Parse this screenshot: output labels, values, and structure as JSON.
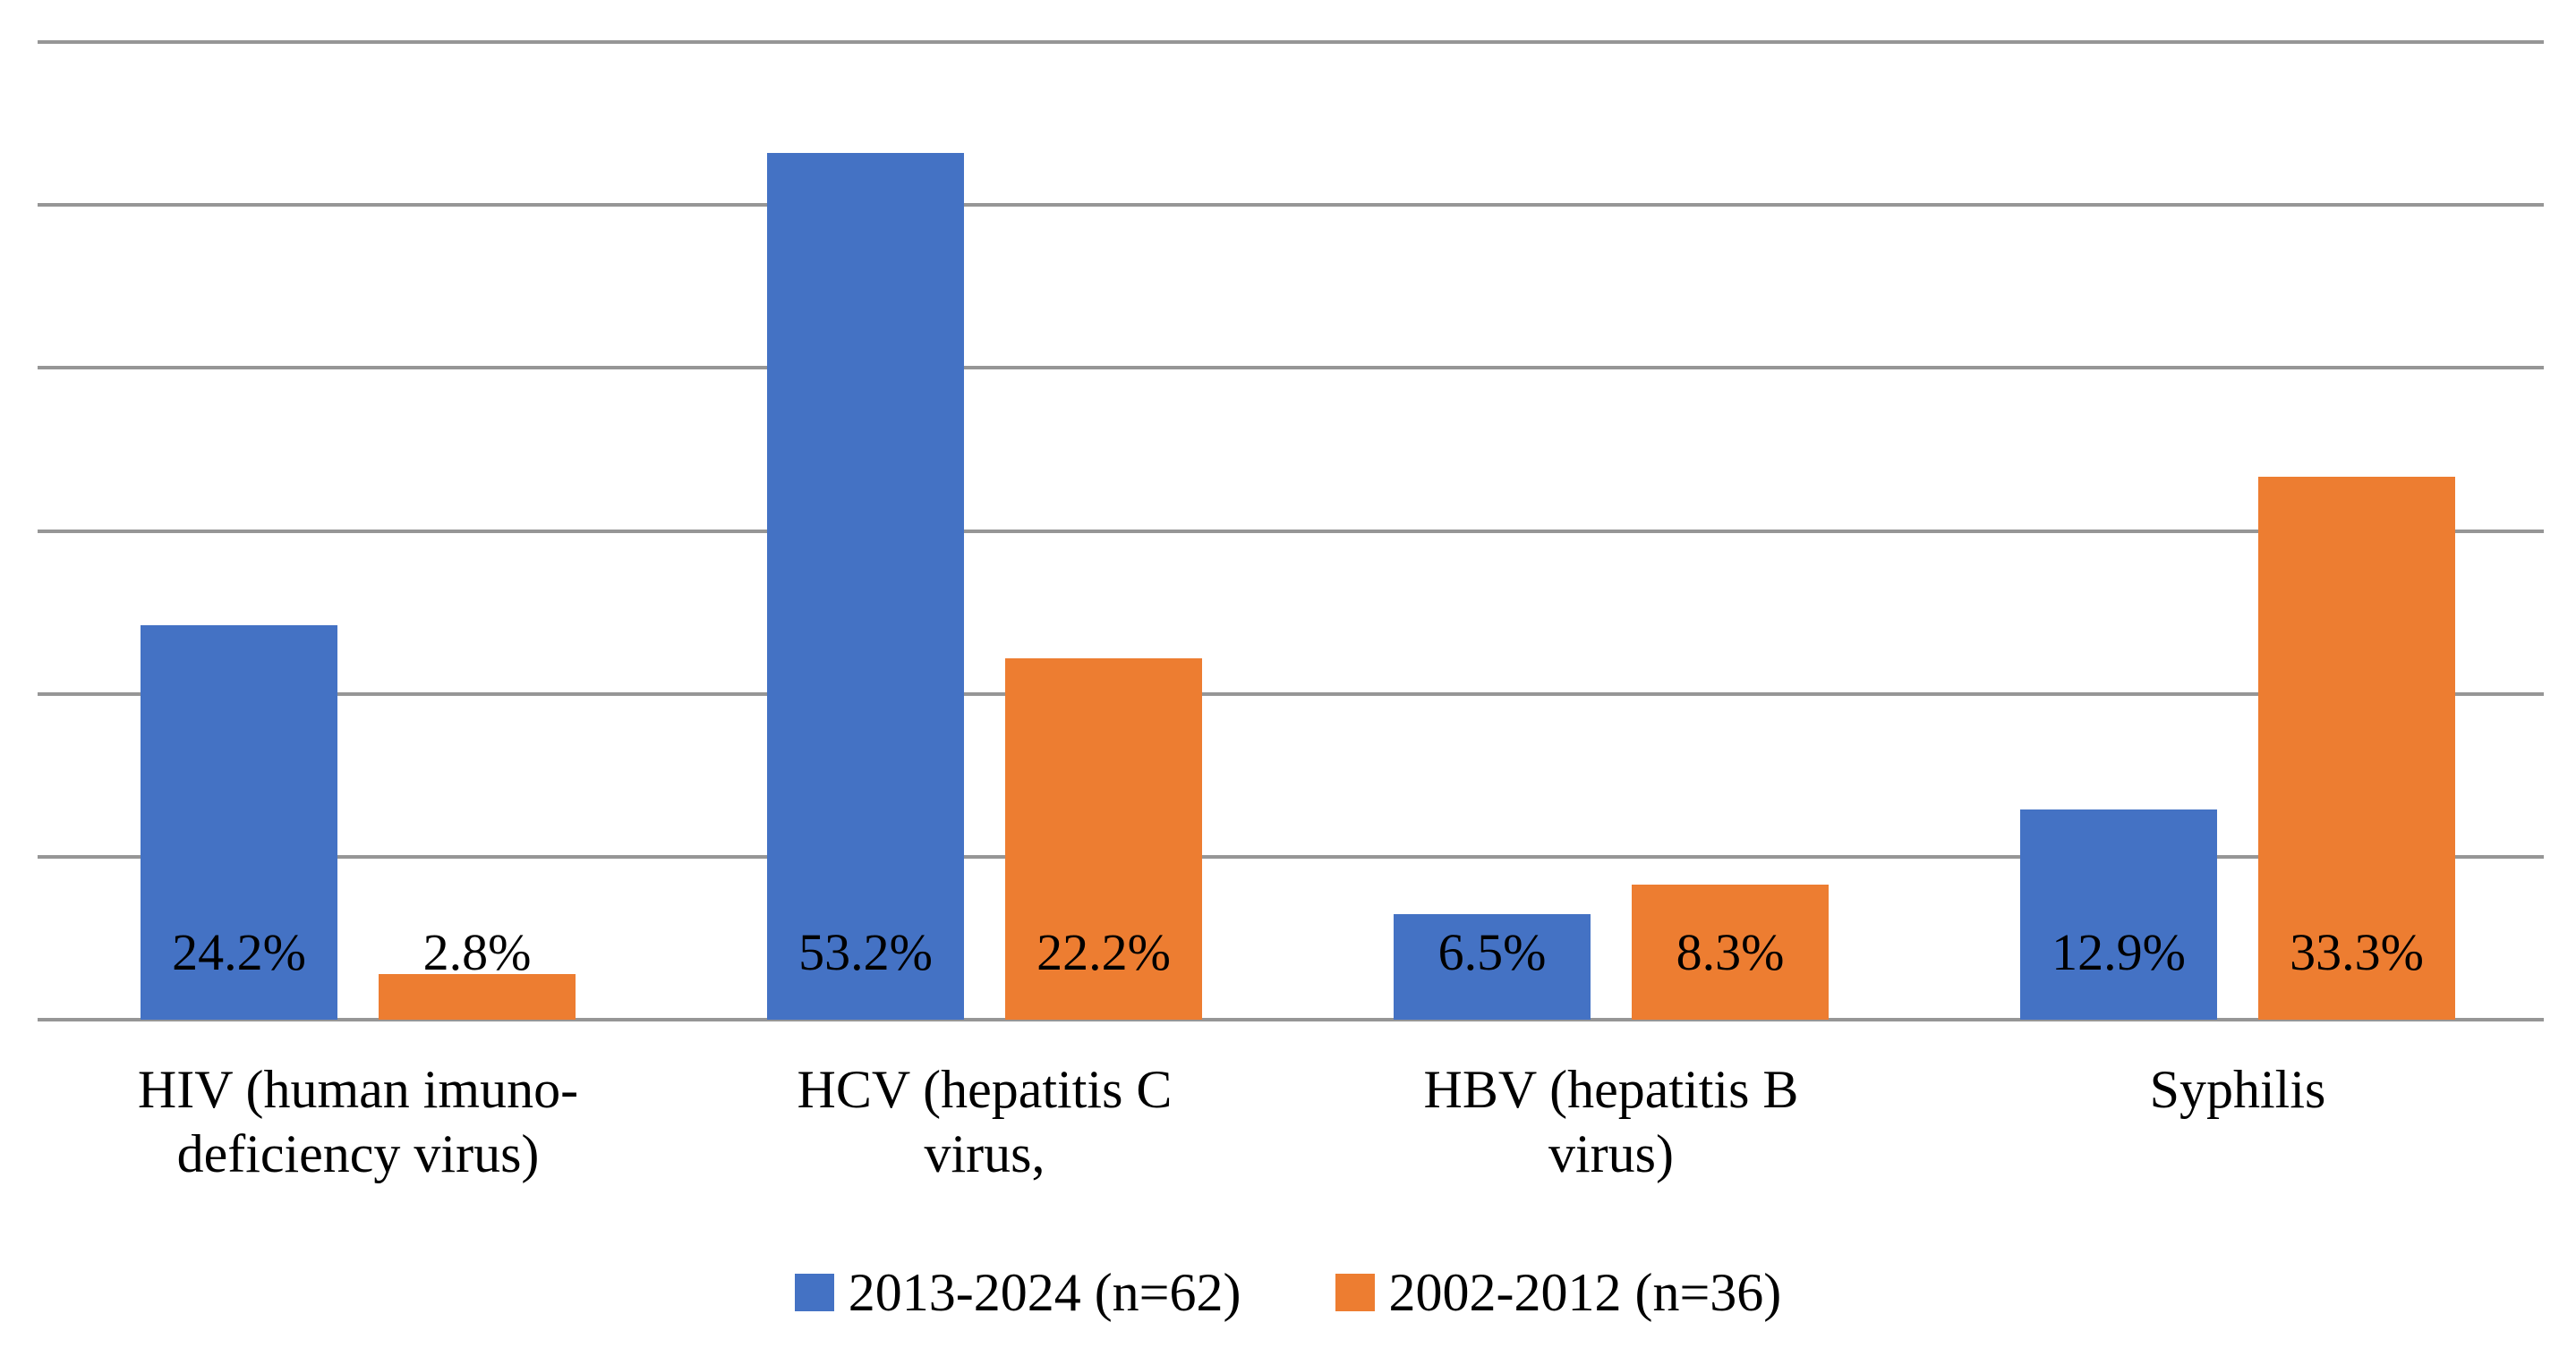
{
  "chart_data": {
    "type": "bar",
    "title": "",
    "xlabel": "",
    "ylabel": "",
    "categories": [
      [
        "HIV (human imuno-",
        "deficiency virus)"
      ],
      [
        "HCV (hepatitis C",
        "virus,"
      ],
      [
        "HBV (hepatitis B",
        "virus)"
      ],
      [
        "Syphilis"
      ]
    ],
    "series": [
      {
        "name": "2013-2024 (n=62)",
        "color": "#4472C4",
        "values": [
          24.2,
          53.2,
          6.5,
          12.9
        ]
      },
      {
        "name": "2002-2012 (n=36)",
        "color": "#ED7D31",
        "values": [
          2.8,
          22.2,
          8.3,
          33.3
        ]
      }
    ],
    "data_labels": [
      [
        "24.2%",
        "53.2%",
        "6.5%",
        "12.9%"
      ],
      [
        "2.8%",
        "22.2%",
        "8.3%",
        "33.3%"
      ]
    ],
    "ylim": [
      0,
      60
    ],
    "gridline_step": 10,
    "grid": true,
    "gridline_color": "#969696",
    "axis_tick_labels_visible": false,
    "legend_position": "bottom",
    "label_text_color": "#000000"
  }
}
